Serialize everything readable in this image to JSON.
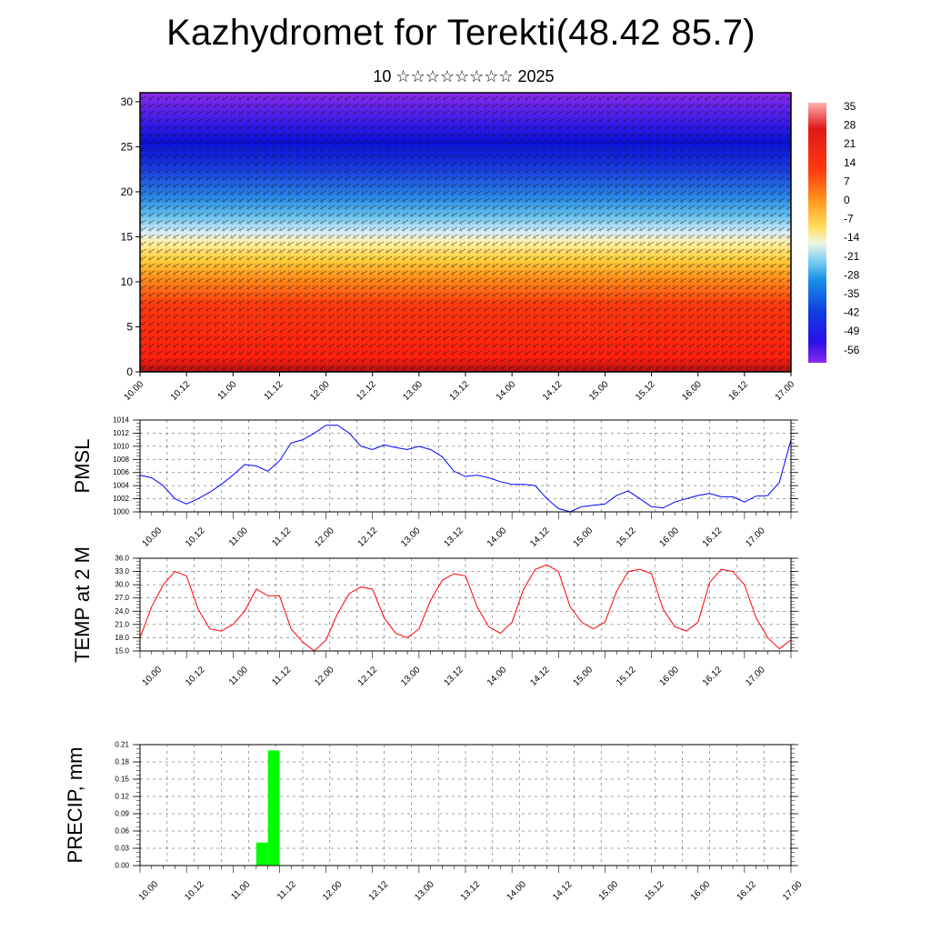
{
  "title": "Kazhydromet for Terekti(48.42 85.7)",
  "subtitle": "10 ☆☆☆☆☆☆☆☆ 2025",
  "colors": {
    "pmsl_line": "#0000ff",
    "temp_line": "#ff0000",
    "precip_bar": "#00ff00"
  },
  "time_ticks": [
    "10.00",
    "10.12",
    "11.00",
    "11.12",
    "12.00",
    "12.12",
    "13.00",
    "13.12",
    "14.00",
    "14.12",
    "15.00",
    "15.12",
    "16.00",
    "16.12",
    "17.00"
  ],
  "chart_data": [
    {
      "type": "heatmap",
      "title": "",
      "ylim": [
        0,
        31
      ],
      "y_ticks": [
        "0",
        "5",
        "10",
        "15",
        "20",
        "25",
        "30"
      ],
      "colorbar_labels": [
        "35",
        "28",
        "21",
        "14",
        "7",
        "0",
        "-7",
        "-14",
        "-21",
        "-28",
        "-35",
        "-42",
        "-49",
        "-56"
      ],
      "overlay": "wind vectors"
    },
    {
      "type": "line",
      "ylabel": "PMSL",
      "ylim": [
        1000,
        1014
      ],
      "y_ticks": [
        "1000",
        "1002",
        "1004",
        "1006",
        "1008",
        "1010",
        "1012",
        "1014"
      ],
      "x_range": [
        0,
        168
      ],
      "x": [
        0,
        3,
        6,
        9,
        12,
        15,
        18,
        21,
        24,
        27,
        30,
        33,
        36,
        39,
        42,
        45,
        48,
        51,
        54,
        57,
        60,
        63,
        66,
        69,
        72,
        75,
        78,
        81,
        84,
        87,
        90,
        93,
        96,
        99,
        102,
        105,
        108,
        111,
        114,
        117,
        120,
        123,
        126,
        129,
        132,
        135,
        138,
        141,
        144,
        147,
        150,
        153,
        156,
        159,
        162,
        165,
        168
      ],
      "values": [
        1005.6,
        1005.2,
        1004.0,
        1002.0,
        1001.2,
        1002.0,
        1003.0,
        1004.2,
        1005.6,
        1007.2,
        1007.0,
        1006.2,
        1007.8,
        1010.5,
        1011.0,
        1012.0,
        1013.2,
        1013.2,
        1012.0,
        1010.0,
        1009.5,
        1010.2,
        1009.8,
        1009.5,
        1010.0,
        1009.5,
        1008.4,
        1006.2,
        1005.4,
        1005.6,
        1005.2,
        1004.6,
        1004.2,
        1004.2,
        1004.0,
        1002.0,
        1000.5,
        1000.0,
        1000.8,
        1001.0,
        1001.2,
        1002.5,
        1003.2,
        1002.0,
        1000.8,
        1000.6,
        1001.5,
        1002.0,
        1002.5,
        1002.8,
        1002.3,
        1002.3,
        1001.5,
        1002.4,
        1002.5,
        1004.5,
        1011.0
      ]
    },
    {
      "type": "line",
      "ylabel": "TEMP at 2 M",
      "ylim": [
        15,
        36
      ],
      "y_ticks": [
        "15.0",
        "18.0",
        "21.0",
        "24.0",
        "27.0",
        "30.0",
        "33.0",
        "36.0"
      ],
      "x_range": [
        0,
        168
      ],
      "x": [
        0,
        3,
        6,
        9,
        12,
        15,
        18,
        21,
        24,
        27,
        30,
        33,
        36,
        39,
        42,
        45,
        48,
        51,
        54,
        57,
        60,
        63,
        66,
        69,
        72,
        75,
        78,
        81,
        84,
        87,
        90,
        93,
        96,
        99,
        102,
        105,
        108,
        111,
        114,
        117,
        120,
        123,
        126,
        129,
        132,
        135,
        138,
        141,
        144,
        147,
        150,
        153,
        156,
        159,
        162,
        165,
        168
      ],
      "values": [
        18.0,
        25.0,
        30.0,
        33.0,
        32.0,
        24.5,
        20.0,
        19.5,
        21.0,
        24.0,
        29.0,
        27.5,
        27.5,
        20.0,
        17.0,
        15.0,
        17.5,
        23.5,
        28.0,
        29.5,
        29.0,
        22.5,
        19.0,
        18.0,
        20.0,
        26.5,
        31.0,
        32.5,
        32.0,
        25.0,
        20.5,
        19.0,
        21.5,
        29.0,
        33.5,
        34.5,
        33.0,
        25.0,
        21.5,
        20.0,
        21.5,
        28.5,
        33.0,
        33.5,
        32.5,
        24.5,
        20.5,
        19.5,
        21.5,
        30.5,
        33.5,
        33.0,
        30.0,
        22.5,
        18.0,
        15.5,
        17.5
      ]
    },
    {
      "type": "bar",
      "ylabel": "PRECIP, mm",
      "ylim": [
        0,
        0.21
      ],
      "y_ticks": [
        "0.00",
        "0.03",
        "0.06",
        "0.09",
        "0.12",
        "0.15",
        "0.18",
        "0.21"
      ],
      "x_range": [
        0,
        168
      ],
      "bar_width_hours": 3,
      "x": [
        30,
        33
      ],
      "values": [
        0.04,
        0.2
      ]
    }
  ]
}
